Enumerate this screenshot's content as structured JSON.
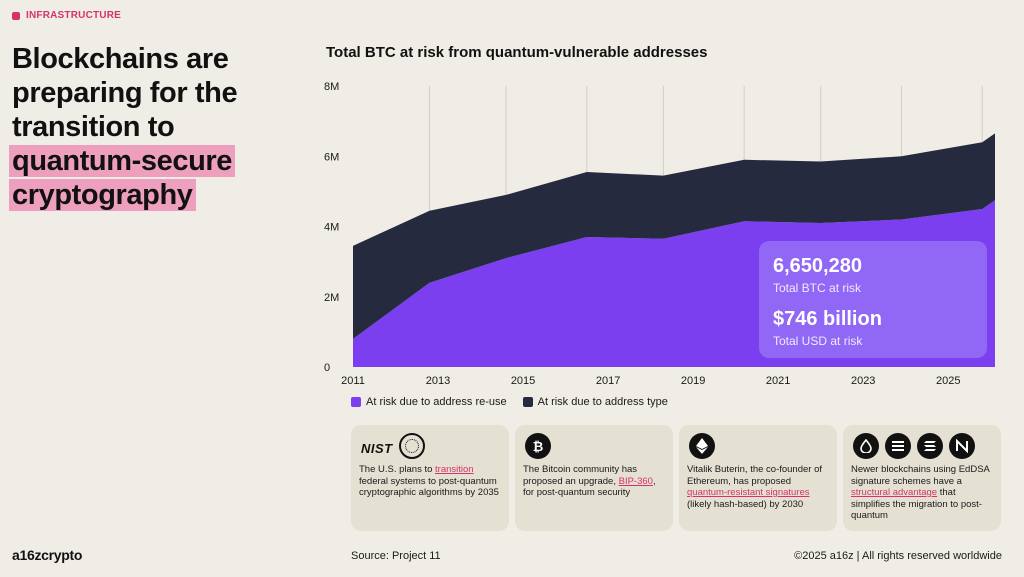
{
  "tag": "INFRASTRUCTURE",
  "headline": {
    "line1": "Blockchains are",
    "line2": "preparing for the",
    "line3": "transition to",
    "line4": "quantum-secure",
    "line5": "cryptography"
  },
  "chart_data": {
    "type": "area",
    "stacked": true,
    "title": "Total BTC at risk from quantum-vulnerable addresses",
    "xlabel": "",
    "ylabel": "",
    "xlim": [
      2011,
      2026.1
    ],
    "ylim": [
      0,
      8000000
    ],
    "x_ticks": [
      "2011",
      "2013",
      "2015",
      "2017",
      "2019",
      "2021",
      "2023",
      "2025"
    ],
    "y_ticks": [
      "0",
      "2M",
      "4M",
      "6M",
      "8M"
    ],
    "grid": "vertical",
    "x": [
      2011.0,
      2012.8,
      2014.6,
      2016.5,
      2018.3,
      2020.2,
      2022.0,
      2023.9,
      2025.8,
      2026.1
    ],
    "series": [
      {
        "name": "At risk due to address re-use",
        "color": "#7b3ff0",
        "values": [
          800000,
          2400000,
          3100000,
          3700000,
          3650000,
          4150000,
          4100000,
          4200000,
          4500000,
          4750000
        ]
      },
      {
        "name": "At risk due to address type",
        "color": "#262a3f",
        "values": [
          2650000,
          2050000,
          1800000,
          1850000,
          1800000,
          1750000,
          1750000,
          1800000,
          1900000,
          1900280
        ]
      }
    ],
    "legend_position": "bottom-left"
  },
  "callout": {
    "total_btc": "6,650,280",
    "total_btc_label": "Total BTC at risk",
    "total_usd": "$746 billion",
    "total_usd_label": "Total USD at risk"
  },
  "cards": [
    {
      "icons": [
        "nist-logo",
        "seal-icon"
      ],
      "logo_text": "NIST",
      "text_before": "The U.S. plans to ",
      "link": "transition",
      "text_after": " federal systems to post-quantum cryptographic algorithms by 2035"
    },
    {
      "icons": [
        "bitcoin-icon"
      ],
      "text_before": "The Bitcoin community has proposed an upgrade, ",
      "link": "BIP-360",
      "text_after": ", for post-quantum security"
    },
    {
      "icons": [
        "ethereum-icon"
      ],
      "text_before": "Vitalik Buterin, the co-founder of Ethereum, has proposed ",
      "link": "quantum-resistant signatures",
      "text_after": " (likely hash-based) by 2030"
    },
    {
      "icons": [
        "drop-icon",
        "stack-icon",
        "solana-icon",
        "near-icon"
      ],
      "text_before": "Newer blockchains using EdDSA signature schemes have a ",
      "link": "structural advantage",
      "text_after": " that simplifies the migration  to post-quantum"
    }
  ],
  "footer": {
    "logo": "a16zcrypto",
    "source": "Source: Project 11",
    "copyright": "©2025 a16z | All rights reserved worldwide"
  },
  "colors": {
    "background": "#efede5",
    "accent_pink": "#d6336c",
    "highlight": "#ee9fbe",
    "purple": "#7b3ff0",
    "navy": "#262a3f",
    "callout": "#9167f5",
    "card": "#e4e0d2"
  }
}
